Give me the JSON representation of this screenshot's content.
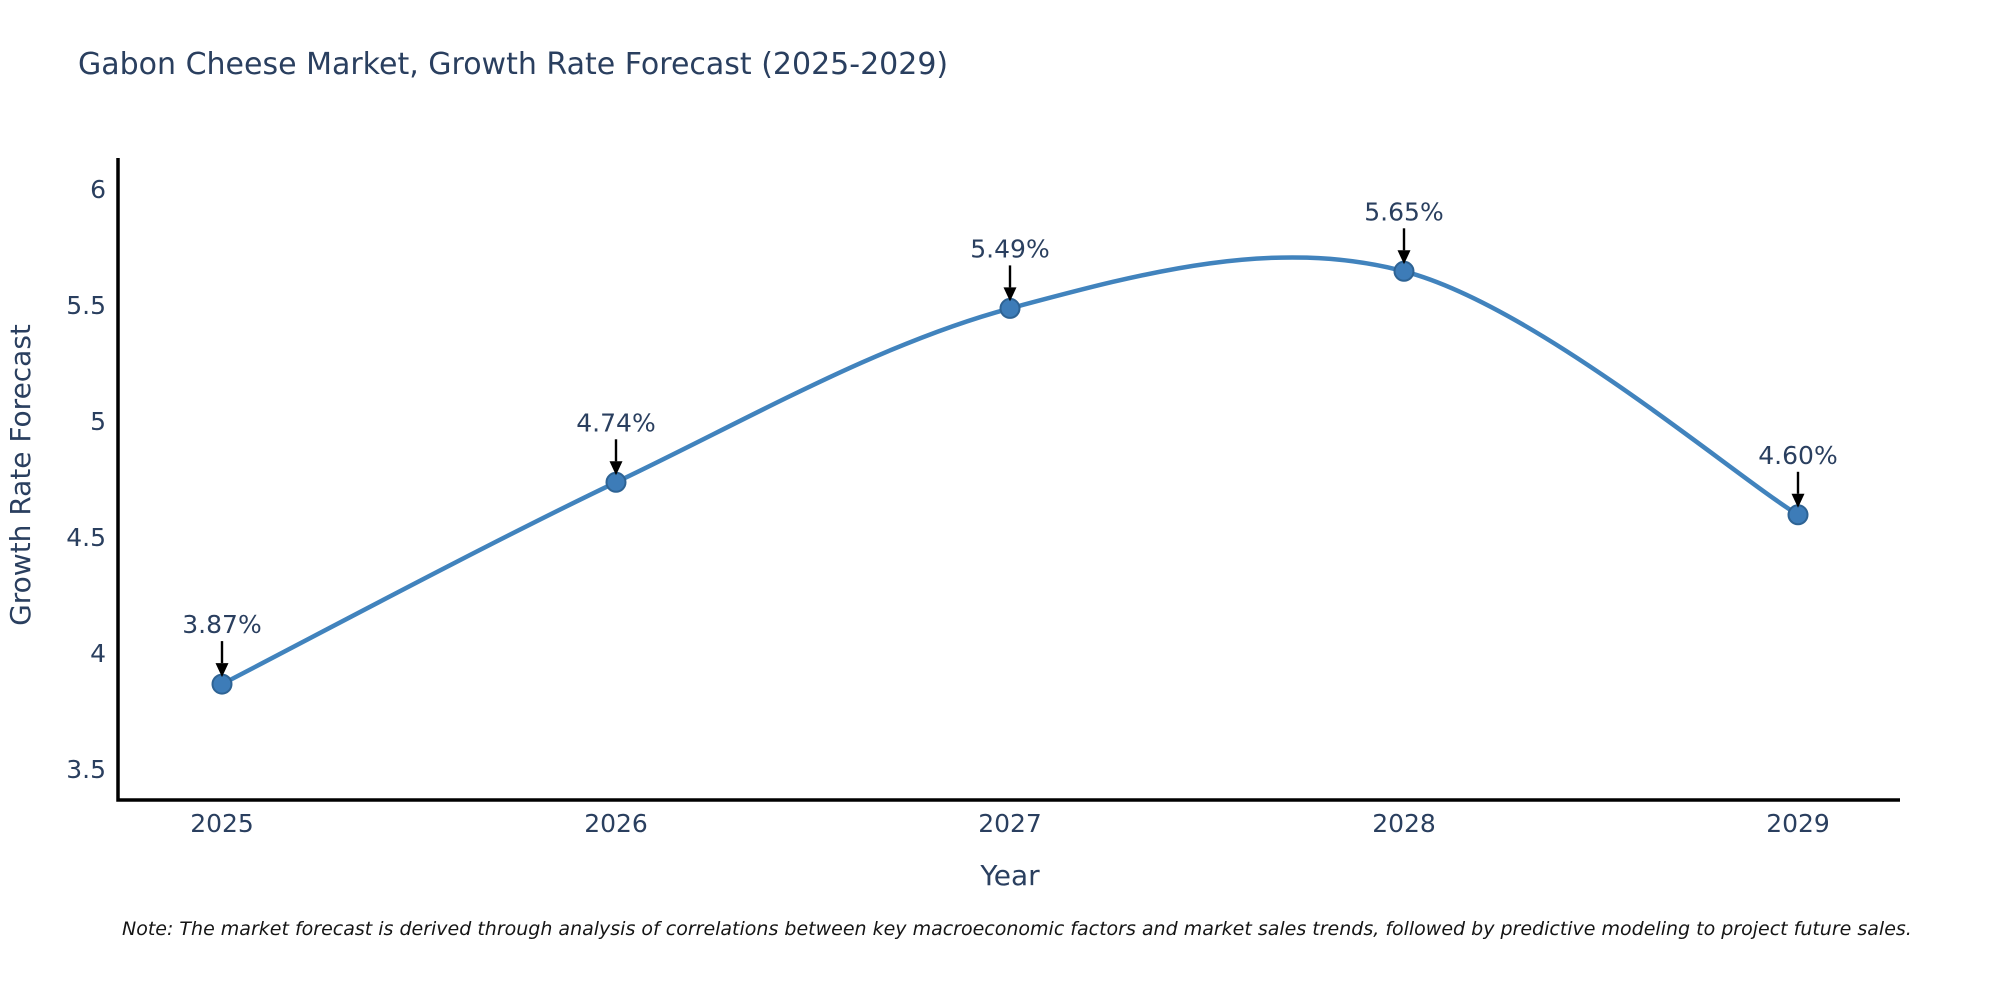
{
  "chart_data": {
    "type": "line",
    "line_shape": "spline",
    "title": "Gabon Cheese Market, Growth Rate Forecast (2025-2029)",
    "xlabel": "Year",
    "ylabel": "Growth Rate Forecast",
    "categories": [
      "2025",
      "2026",
      "2027",
      "2028",
      "2029"
    ],
    "values": [
      3.87,
      4.74,
      5.49,
      5.65,
      4.6
    ],
    "point_labels": [
      "3.87%",
      "4.74%",
      "5.49%",
      "5.65%",
      "4.60%"
    ],
    "ytick_labels": [
      "3.5",
      "4",
      "4.5",
      "5",
      "5.5",
      "6"
    ],
    "ylim": [
      3.37,
      6.13
    ],
    "grid": false,
    "legend": false,
    "annotation_style": "down-arrow",
    "colors": {
      "line": "#4183bd",
      "marker_fill": "#3d7cb8",
      "marker_edge": "#2e6394",
      "axis": "#000000",
      "text": "#2a3f5f",
      "annotation_text": "#2a3f5f",
      "annotation_arrow": "#000000",
      "background": "#ffffff"
    }
  },
  "note": "Note: The market forecast is derived through analysis of correlations between key macroeconomic factors and market sales trends, followed by predictive modeling to project future sales."
}
